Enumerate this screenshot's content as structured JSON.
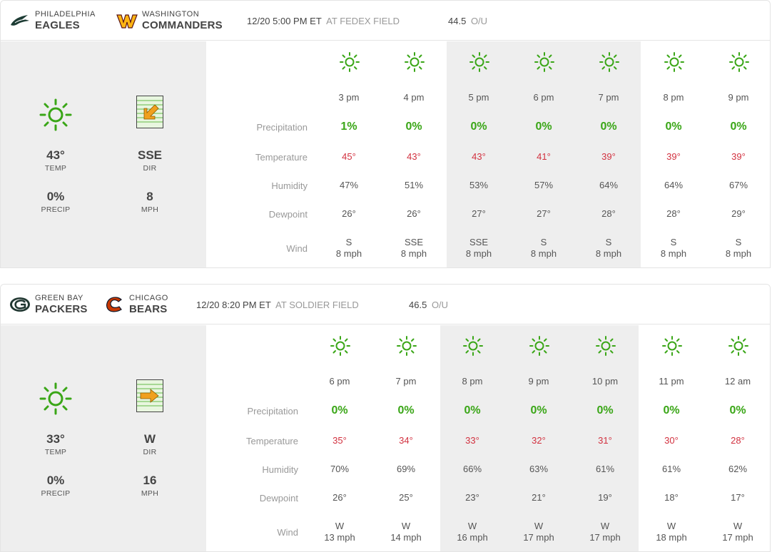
{
  "games": [
    {
      "away": {
        "city": "PHILADELPHIA",
        "name": "EAGLES",
        "logo": "eagles-logo"
      },
      "home": {
        "city": "WASHINGTON",
        "name": "COMMANDERS",
        "logo": "commanders-logo"
      },
      "kickoff": "12/20 5:00 PM ET",
      "venue": "AT FEDEX FIELD",
      "over_under": "44.5",
      "ou_label": "O/U",
      "summary": {
        "condition_icon": "sun-icon",
        "temp": "43°",
        "temp_label": "TEMP",
        "wind_dir": "SSE",
        "dir_label": "DIR",
        "precip": "0%",
        "precip_label": "PRECIP",
        "wind_speed": "8",
        "speed_label": "MPH",
        "wind_arrow": "arrow-down-left-icon"
      },
      "row_labels": {
        "precip": "Precipitation",
        "temp": "Temperature",
        "humidity": "Humidity",
        "dewpoint": "Dewpoint",
        "wind": "Wind"
      },
      "hours": [
        {
          "time": "3 pm",
          "precip": "1%",
          "temp": "45°",
          "humidity": "47%",
          "dewpoint": "26°",
          "wind_dir": "S",
          "wind_speed": "8 mph"
        },
        {
          "time": "4 pm",
          "precip": "0%",
          "temp": "43°",
          "humidity": "51%",
          "dewpoint": "26°",
          "wind_dir": "SSE",
          "wind_speed": "8 mph"
        },
        {
          "time": "5 pm",
          "precip": "0%",
          "temp": "43°",
          "humidity": "53%",
          "dewpoint": "27°",
          "wind_dir": "SSE",
          "wind_speed": "8 mph"
        },
        {
          "time": "6 pm",
          "precip": "0%",
          "temp": "41°",
          "humidity": "57%",
          "dewpoint": "27°",
          "wind_dir": "S",
          "wind_speed": "8 mph"
        },
        {
          "time": "7 pm",
          "precip": "0%",
          "temp": "39°",
          "humidity": "64%",
          "dewpoint": "28°",
          "wind_dir": "S",
          "wind_speed": "8 mph"
        },
        {
          "time": "8 pm",
          "precip": "0%",
          "temp": "39°",
          "humidity": "64%",
          "dewpoint": "28°",
          "wind_dir": "S",
          "wind_speed": "8 mph"
        },
        {
          "time": "9 pm",
          "precip": "0%",
          "temp": "39°",
          "humidity": "67%",
          "dewpoint": "29°",
          "wind_dir": "S",
          "wind_speed": "8 mph"
        }
      ]
    },
    {
      "away": {
        "city": "GREEN BAY",
        "name": "PACKERS",
        "logo": "packers-logo"
      },
      "home": {
        "city": "CHICAGO",
        "name": "BEARS",
        "logo": "bears-logo"
      },
      "kickoff": "12/20 8:20 PM ET",
      "venue": "AT SOLDIER FIELD",
      "over_under": "46.5",
      "ou_label": "O/U",
      "summary": {
        "condition_icon": "sun-icon",
        "temp": "33°",
        "temp_label": "TEMP",
        "wind_dir": "W",
        "dir_label": "DIR",
        "precip": "0%",
        "precip_label": "PRECIP",
        "wind_speed": "16",
        "speed_label": "MPH",
        "wind_arrow": "arrow-right-icon"
      },
      "row_labels": {
        "precip": "Precipitation",
        "temp": "Temperature",
        "humidity": "Humidity",
        "dewpoint": "Dewpoint",
        "wind": "Wind"
      },
      "hours": [
        {
          "time": "6 pm",
          "precip": "0%",
          "temp": "35°",
          "humidity": "70%",
          "dewpoint": "26°",
          "wind_dir": "W",
          "wind_speed": "13 mph"
        },
        {
          "time": "7 pm",
          "precip": "0%",
          "temp": "34°",
          "humidity": "69%",
          "dewpoint": "25°",
          "wind_dir": "W",
          "wind_speed": "14 mph"
        },
        {
          "time": "8 pm",
          "precip": "0%",
          "temp": "33°",
          "humidity": "66%",
          "dewpoint": "23°",
          "wind_dir": "W",
          "wind_speed": "16 mph"
        },
        {
          "time": "9 pm",
          "precip": "0%",
          "temp": "32°",
          "humidity": "63%",
          "dewpoint": "21°",
          "wind_dir": "W",
          "wind_speed": "17 mph"
        },
        {
          "time": "10 pm",
          "precip": "0%",
          "temp": "31°",
          "humidity": "61%",
          "dewpoint": "19°",
          "wind_dir": "W",
          "wind_speed": "17 mph"
        },
        {
          "time": "11 pm",
          "precip": "0%",
          "temp": "30°",
          "humidity": "61%",
          "dewpoint": "18°",
          "wind_dir": "W",
          "wind_speed": "18 mph"
        },
        {
          "time": "12 am",
          "precip": "0%",
          "temp": "28°",
          "humidity": "62%",
          "dewpoint": "17°",
          "wind_dir": "W",
          "wind_speed": "17 mph"
        }
      ]
    }
  ],
  "colors": {
    "sun": "#3aa617",
    "precip": "#3aa617",
    "temp": "#d2313f",
    "shade": "#eeeeee",
    "wind_arrow": "#f0a01e"
  }
}
